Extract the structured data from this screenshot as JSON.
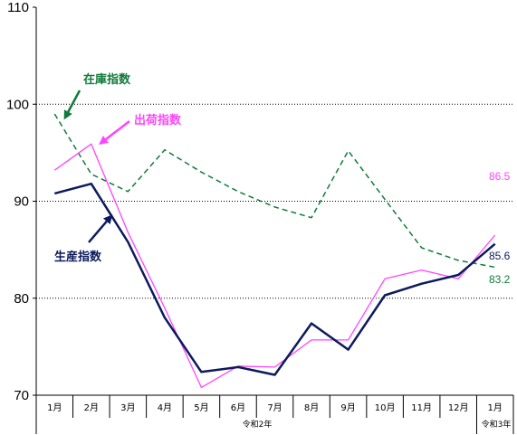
{
  "chart_data": {
    "type": "line",
    "categories": [
      "1月",
      "2月",
      "3月",
      "4月",
      "5月",
      "6月",
      "7月",
      "8月",
      "9月",
      "10月",
      "11月",
      "12月",
      "1月"
    ],
    "era_labels": [
      "令和2年",
      "令和3年"
    ],
    "ylim": [
      70,
      110
    ],
    "yticks": [
      "70",
      "80",
      "90",
      "100",
      "110"
    ],
    "grid": true,
    "series": [
      {
        "name": "生産指数",
        "color": "#0d1a5c",
        "style": "solid-thick",
        "values": [
          90.8,
          91.8,
          85.8,
          78.0,
          72.4,
          72.9,
          72.1,
          77.4,
          74.7,
          80.3,
          81.5,
          82.4,
          85.6
        ],
        "end_label": "85.6"
      },
      {
        "name": "出荷指数",
        "color": "#ff44ff",
        "style": "solid-thin",
        "values": [
          93.2,
          95.9,
          86.8,
          79.0,
          70.8,
          73.0,
          72.9,
          75.7,
          75.7,
          82.0,
          82.9,
          82.0,
          86.5
        ],
        "end_label": "86.5"
      },
      {
        "name": "在庫指数",
        "color": "#117a3a",
        "style": "dashed",
        "values": [
          99.0,
          92.8,
          91.0,
          95.3,
          93.0,
          91.0,
          89.4,
          88.3,
          95.2,
          90.2,
          85.2,
          83.9,
          83.2
        ],
        "end_label": "83.2"
      }
    ]
  }
}
